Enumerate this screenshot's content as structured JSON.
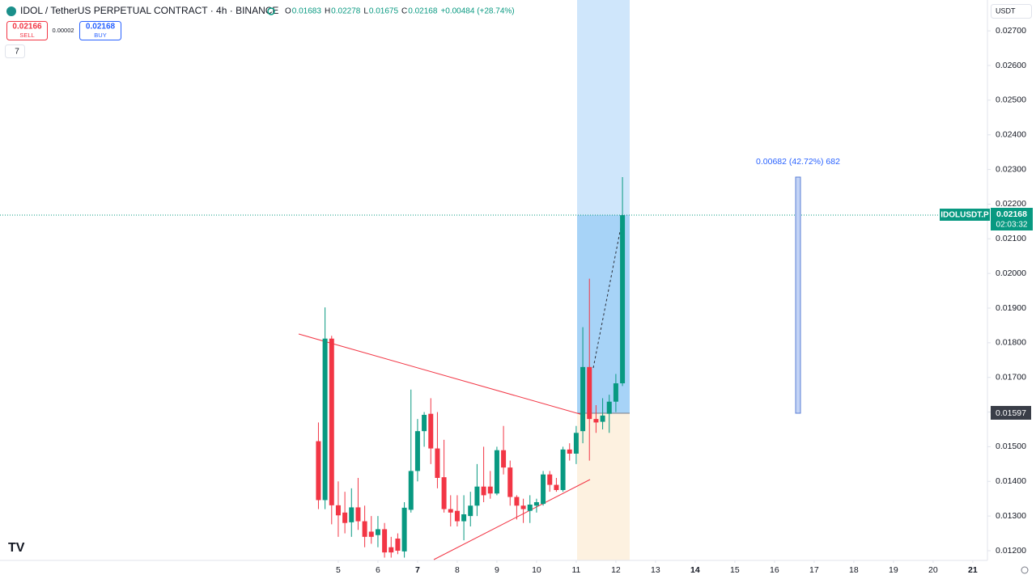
{
  "chart_data": {
    "type": "candlestick",
    "title": "IDOL / TetherUS PERPETUAL CONTRACT · 4h · BINANCE",
    "ohlc": [
      {
        "label": "O",
        "value": "0.01683"
      },
      {
        "label": "H",
        "value": "0.02278"
      },
      {
        "label": "L",
        "value": "0.01675"
      },
      {
        "label": "C",
        "value": "0.02168"
      }
    ],
    "change": "+0.00484 (+28.74%)",
    "sell": {
      "price": "0.02166",
      "label": "SELL"
    },
    "spread": "0.00002",
    "buy": {
      "price": "0.02168",
      "label": "BUY"
    },
    "indicators": "7",
    "currency": "USDT",
    "symbol_label": "IDOLUSDT.P",
    "last_price": "0.02168",
    "countdown": "02:03:32",
    "marker_price": "0.01597",
    "measure": "0.00682 (42.72%) 682",
    "up_color": "#089981",
    "down_color": "#f23645",
    "grid": false,
    "ylim": [
      0.01172,
      0.02789
    ],
    "yticks": [
      {
        "value": 0.012,
        "label": "0.01200"
      },
      {
        "value": 0.013,
        "label": "0.01300"
      },
      {
        "value": 0.014,
        "label": "0.01400"
      },
      {
        "value": 0.015,
        "label": "0.01500"
      },
      {
        "value": 0.016,
        "label": "0.01600"
      },
      {
        "value": 0.017,
        "label": "0.01700"
      },
      {
        "value": 0.018,
        "label": "0.01800"
      },
      {
        "value": 0.019,
        "label": "0.01900"
      },
      {
        "value": 0.02,
        "label": "0.02000"
      },
      {
        "value": 0.021,
        "label": "0.02100"
      },
      {
        "value": 0.022,
        "label": "0.02200"
      },
      {
        "value": 0.023,
        "label": "0.02300"
      },
      {
        "value": 0.024,
        "label": "0.02400"
      },
      {
        "value": 0.025,
        "label": "0.02500"
      },
      {
        "value": 0.026,
        "label": "0.02600"
      },
      {
        "value": 0.027,
        "label": "0.02700"
      }
    ],
    "xlim": [
      -3.53,
      21.37
    ],
    "xticks": [
      5,
      6,
      7,
      8,
      9,
      10,
      11,
      12,
      13,
      14,
      15,
      16,
      17,
      18,
      19,
      20,
      21
    ],
    "x": [
      4.5,
      4.6667,
      4.8333,
      5,
      5.1667,
      5.3333,
      5.5,
      5.6667,
      5.8333,
      6,
      6.1667,
      6.3333,
      6.5,
      6.6667,
      6.8333,
      7,
      7.1667,
      7.3333,
      7.5,
      7.6667,
      7.8333,
      8,
      8.1667,
      8.3333,
      8.5,
      8.6667,
      8.8333,
      9,
      9.1667,
      9.3333,
      9.5,
      9.6667,
      9.8333,
      10,
      10.1667,
      10.3333,
      10.5,
      10.6667,
      10.8333,
      11,
      11.1667,
      11.3333,
      11.5,
      11.6667,
      11.8333,
      12,
      12.1667
    ],
    "open": [
      0.01516,
      0.01346,
      0.01812,
      0.01331,
      0.0131,
      0.01282,
      0.01325,
      0.01285,
      0.01255,
      0.01245,
      0.01262,
      0.0121,
      0.01235,
      0.01198,
      0.01318,
      0.0143,
      0.01545,
      0.01595,
      0.01495,
      0.01412,
      0.0132,
      0.01315,
      0.01285,
      0.013,
      0.0133,
      0.01385,
      0.01385,
      0.01365,
      0.0149,
      0.0144,
      0.01355,
      0.0133,
      0.01315,
      0.0133,
      0.01335,
      0.0142,
      0.0139,
      0.01375,
      0.01492,
      0.0148,
      0.01545,
      0.0173,
      0.0158,
      0.01572,
      0.01595,
      0.0163,
      0.01683
    ],
    "high": [
      0.0157,
      0.01902,
      0.0182,
      0.014,
      0.0137,
      0.0138,
      0.0141,
      0.0133,
      0.013,
      0.013,
      0.0128,
      0.0124,
      0.0125,
      0.0134,
      0.01665,
      0.0158,
      0.016,
      0.0164,
      0.016,
      0.0152,
      0.0136,
      0.0136,
      0.0136,
      0.0137,
      0.0145,
      0.015,
      0.0143,
      0.015,
      0.0156,
      0.0146,
      0.0136,
      0.0135,
      0.0136,
      0.0135,
      0.0143,
      0.0143,
      0.0141,
      0.015,
      0.0151,
      0.0156,
      0.01845,
      0.01985,
      0.0162,
      0.0164,
      0.0165,
      0.0171,
      0.02278
    ],
    "low": [
      0.0132,
      0.0132,
      0.01276,
      0.0124,
      0.0125,
      0.0124,
      0.0126,
      0.0121,
      0.0122,
      0.0121,
      0.0118,
      0.0118,
      0.0119,
      0.0118,
      0.0131,
      0.014,
      0.015,
      0.0145,
      0.0138,
      0.0131,
      0.0127,
      0.0127,
      0.0123,
      0.0127,
      0.013,
      0.0134,
      0.0135,
      0.0136,
      0.0142,
      0.0133,
      0.0129,
      0.0128,
      0.0128,
      0.0131,
      0.0133,
      0.0137,
      0.0137,
      0.0137,
      0.0146,
      0.0145,
      0.0151,
      0.0146,
      0.0154,
      0.0155,
      0.0154,
      0.016,
      0.01675
    ],
    "close": [
      0.01346,
      0.01812,
      0.01331,
      0.01302,
      0.0128,
      0.01325,
      0.01285,
      0.0124,
      0.0124,
      0.01262,
      0.01195,
      0.01195,
      0.012,
      0.01324,
      0.0143,
      0.01545,
      0.01592,
      0.01495,
      0.0141,
      0.0132,
      0.0131,
      0.01285,
      0.01305,
      0.0133,
      0.01385,
      0.0136,
      0.01365,
      0.0149,
      0.0144,
      0.01355,
      0.0133,
      0.0132,
      0.01333,
      0.0134,
      0.0142,
      0.0139,
      0.01375,
      0.01492,
      0.0148,
      0.0154,
      0.0173,
      0.0158,
      0.0157,
      0.0159,
      0.0163,
      0.01683,
      0.02168
    ]
  }
}
